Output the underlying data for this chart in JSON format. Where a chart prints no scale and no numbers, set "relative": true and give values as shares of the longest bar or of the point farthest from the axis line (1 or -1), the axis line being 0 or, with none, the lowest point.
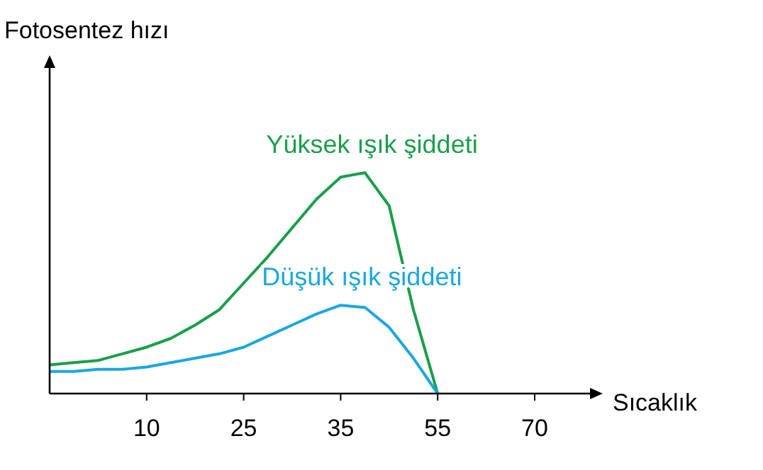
{
  "chart_data": {
    "type": "line",
    "relative": true,
    "xlabel": "Sıcaklık",
    "annotations": [
      "Fotosentez hızı"
    ],
    "categories": [
      null,
      null,
      null,
      null,
      "10",
      null,
      null,
      null,
      "25",
      null,
      null,
      null,
      "35",
      null,
      null,
      null,
      "55",
      null,
      null,
      null,
      "70"
    ],
    "legend": false,
    "marker": "none",
    "line_style": "solid",
    "series": [
      {
        "name": "Yüksek ışık şiddeti",
        "color": "#1a9e4a",
        "values": [
          0.13,
          0.14,
          0.15,
          0.18,
          0.21,
          0.25,
          0.31,
          0.38,
          0.5,
          0.62,
          0.75,
          0.88,
          0.98,
          1,
          0.85,
          0.38,
          0,
          null,
          null,
          null,
          null
        ]
      },
      {
        "name": "Düşük ışık şiddeti",
        "color": "#1aa7e0",
        "values": [
          0.1,
          0.1,
          0.11,
          0.11,
          0.12,
          0.14,
          0.16,
          0.18,
          0.21,
          0.26,
          0.31,
          0.36,
          0.4,
          0.39,
          0.3,
          0.16,
          0,
          null,
          null,
          null,
          null
        ]
      }
    ]
  }
}
